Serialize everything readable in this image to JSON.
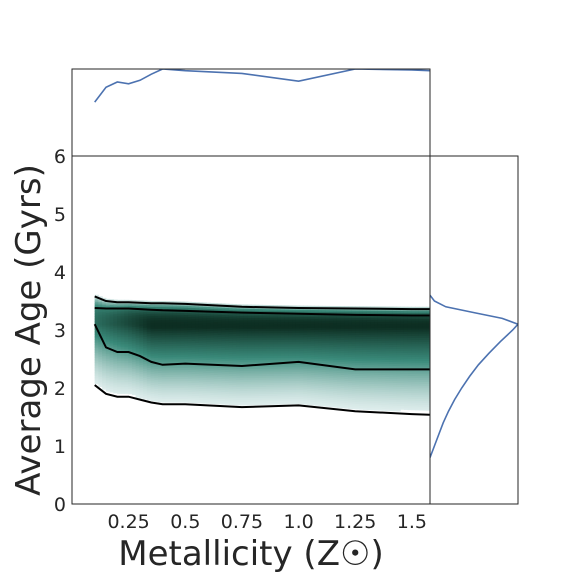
{
  "chart_data": {
    "type": "area",
    "xlabel": "Metallicity (Z☉)",
    "ylabel": "Average Age (Gyrs)",
    "xlim": [
      0.0,
      1.58
    ],
    "ylim": [
      0,
      6
    ],
    "x_ticks": [
      "0.25",
      "0.5",
      "0.75",
      "1.0",
      "1.25",
      "1.5"
    ],
    "y_ticks": [
      "0",
      "1",
      "2",
      "3",
      "4",
      "5",
      "6"
    ],
    "grid": false,
    "colors": {
      "line": "#4c72b0",
      "contour": "#000000",
      "density_dark": "#0d2e22",
      "density_mid": "#3a8a7a",
      "density_light": "#e8f3f3"
    },
    "density_mode": {
      "x": [
        0.1,
        0.15,
        0.2,
        0.25,
        0.3,
        0.35,
        0.4,
        0.5,
        0.75,
        1.0,
        1.25,
        1.5,
        1.58
      ],
      "y": [
        3.1,
        3.1,
        3.1,
        3.1,
        3.08,
        3.05,
        3.05,
        3.05,
        3.05,
        3.05,
        3.05,
        3.05,
        3.05
      ]
    },
    "contours": [
      {
        "level": "outer-upper",
        "x": [
          0.1,
          0.15,
          0.2,
          0.25,
          0.3,
          0.35,
          0.4,
          0.5,
          0.75,
          1.0,
          1.25,
          1.5,
          1.58
        ],
        "y": [
          3.58,
          3.5,
          3.48,
          3.48,
          3.47,
          3.46,
          3.46,
          3.45,
          3.4,
          3.38,
          3.37,
          3.36,
          3.36
        ]
      },
      {
        "level": "inner-upper",
        "x": [
          0.1,
          0.15,
          0.2,
          0.25,
          0.3,
          0.35,
          0.4,
          0.5,
          0.75,
          1.0,
          1.25,
          1.5,
          1.58
        ],
        "y": [
          3.38,
          3.37,
          3.37,
          3.37,
          3.36,
          3.35,
          3.34,
          3.33,
          3.3,
          3.28,
          3.26,
          3.25,
          3.25
        ]
      },
      {
        "level": "inner-lower",
        "x": [
          0.1,
          0.15,
          0.2,
          0.25,
          0.3,
          0.35,
          0.4,
          0.5,
          0.75,
          1.0,
          1.25,
          1.5,
          1.58
        ],
        "y": [
          3.1,
          2.7,
          2.62,
          2.62,
          2.55,
          2.45,
          2.4,
          2.42,
          2.38,
          2.45,
          2.32,
          2.32,
          2.32
        ]
      },
      {
        "level": "outer-lower",
        "x": [
          0.1,
          0.15,
          0.2,
          0.25,
          0.3,
          0.35,
          0.4,
          0.5,
          0.75,
          1.0,
          1.25,
          1.5,
          1.58
        ],
        "y": [
          2.05,
          1.9,
          1.85,
          1.85,
          1.8,
          1.75,
          1.72,
          1.72,
          1.67,
          1.7,
          1.6,
          1.55,
          1.54
        ]
      }
    ],
    "top_marginal": {
      "x": [
        0.1,
        0.15,
        0.2,
        0.25,
        0.3,
        0.35,
        0.4,
        0.5,
        0.75,
        1.0,
        1.25,
        1.5,
        1.58
      ],
      "density": [
        0.62,
        0.79,
        0.85,
        0.83,
        0.87,
        0.94,
        1.0,
        0.98,
        0.95,
        0.86,
        1.0,
        0.99,
        0.98
      ]
    },
    "right_marginal": {
      "y": [
        0.8,
        1.0,
        1.2,
        1.4,
        1.6,
        1.8,
        2.0,
        2.2,
        2.4,
        2.6,
        2.8,
        3.0,
        3.1,
        3.2,
        3.3,
        3.4,
        3.5,
        3.6
      ],
      "density": [
        0.0,
        0.05,
        0.1,
        0.15,
        0.21,
        0.28,
        0.36,
        0.45,
        0.55,
        0.67,
        0.8,
        0.94,
        1.0,
        0.82,
        0.5,
        0.18,
        0.05,
        0.0
      ]
    }
  }
}
